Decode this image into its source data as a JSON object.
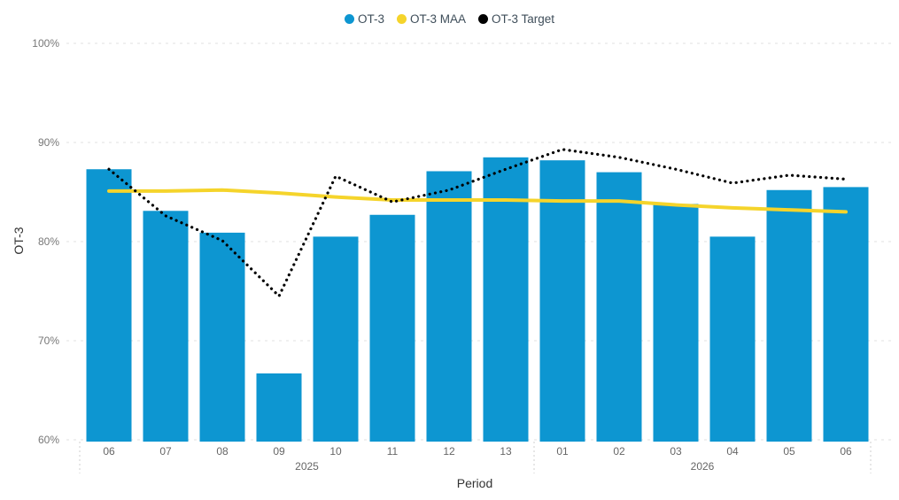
{
  "legend": {
    "items": [
      {
        "label": "OT-3",
        "color": "#0D96D1"
      },
      {
        "label": "OT-3 MAA",
        "color": "#F5D42B"
      },
      {
        "label": "OT-3 Target",
        "color": "#000000"
      }
    ]
  },
  "colors": {
    "background": "#FFFFFF",
    "grid": "#E2E2E2",
    "separator": "#CFCFCF",
    "y_tick_text": "#777777",
    "x_tick_text": "#666666",
    "axis_title_text": "#333333",
    "legend_text": "#3F4E5A",
    "bar": "#0D96D1",
    "maa_line": "#F5D42B",
    "target_line": "#000000"
  },
  "chart_data": {
    "type": "bar",
    "title": "",
    "xlabel": "Period",
    "ylabel": "OT-3",
    "ylim": [
      60,
      100
    ],
    "yticks": [
      100,
      90,
      80,
      70,
      60
    ],
    "ytick_suffix": "%",
    "grid": true,
    "legend_position": "top",
    "categories": [
      "06",
      "07",
      "08",
      "09",
      "10",
      "11",
      "12",
      "13",
      "01",
      "02",
      "03",
      "04",
      "05",
      "06"
    ],
    "year_groups": [
      {
        "label": "2025",
        "count": 8
      },
      {
        "label": "2026",
        "count": 6
      }
    ],
    "series": [
      {
        "name": "OT-3",
        "type": "bar",
        "color": "#0D96D1",
        "values": [
          87.3,
          83.1,
          80.9,
          66.7,
          80.5,
          82.7,
          87.1,
          88.5,
          88.2,
          87.0,
          83.8,
          80.5,
          85.2,
          85.5
        ]
      },
      {
        "name": "OT-3 MAA",
        "type": "line",
        "color": "#F5D42B",
        "values": [
          85.1,
          85.1,
          85.2,
          84.9,
          84.5,
          84.2,
          84.2,
          84.2,
          84.1,
          84.1,
          83.7,
          83.4,
          83.2,
          83.0
        ]
      },
      {
        "name": "OT-3 Target",
        "type": "dotted_line",
        "color": "#000000",
        "values": [
          87.3,
          82.6,
          80.1,
          74.5,
          86.6,
          84.0,
          85.2,
          87.3,
          89.3,
          88.5,
          87.3,
          85.9,
          86.7,
          86.3
        ]
      }
    ]
  }
}
